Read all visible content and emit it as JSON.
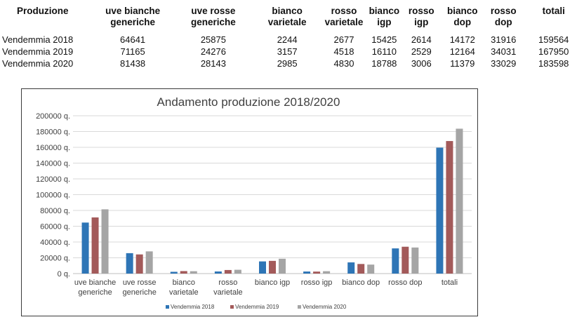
{
  "table": {
    "headers": [
      [
        "Produzione"
      ],
      [
        "uve bianche",
        "generiche"
      ],
      [
        "uve rosse",
        "generiche"
      ],
      [
        "bianco",
        "varietale"
      ],
      [
        "rosso",
        "varietale"
      ],
      [
        "bianco",
        "igp"
      ],
      [
        "rosso",
        "igp"
      ],
      [
        "bianco",
        "dop"
      ],
      [
        "rosso",
        "dop"
      ],
      [
        "totali"
      ]
    ],
    "rows": [
      [
        "Vendemmia 2018",
        "64641",
        "25875",
        "2244",
        "2677",
        "15425",
        "2614",
        "14172",
        "31916",
        "159564"
      ],
      [
        "Vendemmia 2019",
        "71165",
        "24276",
        "3157",
        "4518",
        "16110",
        "2529",
        "12164",
        "34031",
        "167950"
      ],
      [
        "Vendemmia 2020",
        "81438",
        "28143",
        "2985",
        "4830",
        "18788",
        "3006",
        "11379",
        "33029",
        "183598"
      ]
    ]
  },
  "chart_data": {
    "type": "bar",
    "title": "Andamento produzione 2018/2020",
    "categories": [
      [
        "uve bianche",
        "generiche"
      ],
      [
        "uve rosse",
        "generiche"
      ],
      [
        "bianco",
        "varietale"
      ],
      [
        "rosso",
        "varietale"
      ],
      [
        "bianco igp"
      ],
      [
        "rosso igp"
      ],
      [
        "bianco dop"
      ],
      [
        "rosso dop"
      ],
      [
        "totali"
      ]
    ],
    "series": [
      {
        "name": "Vendemmia 2018",
        "color": "#2e75b6",
        "values": [
          64641,
          25875,
          2244,
          2677,
          15425,
          2614,
          14172,
          31916,
          159564
        ]
      },
      {
        "name": "Vendemmia 2019",
        "color": "#a35a5a",
        "values": [
          71165,
          24276,
          3157,
          4518,
          16110,
          2529,
          12164,
          34031,
          167950
        ]
      },
      {
        "name": "Vendemmia 2020",
        "color": "#a5a5a5",
        "values": [
          81438,
          28143,
          2985,
          4830,
          18788,
          3006,
          11379,
          33029,
          183598
        ]
      }
    ],
    "ylim": [
      0,
      200000
    ],
    "ytick_step": 20000,
    "ytick_labels": [
      "0 q.",
      "20000 q.",
      "40000 q.",
      "60000 q.",
      "80000 q.",
      "100000 q.",
      "120000 q.",
      "140000 q.",
      "160000 q.",
      "180000 q.",
      "200000 q."
    ],
    "grid": true,
    "legend_position": "bottom"
  }
}
